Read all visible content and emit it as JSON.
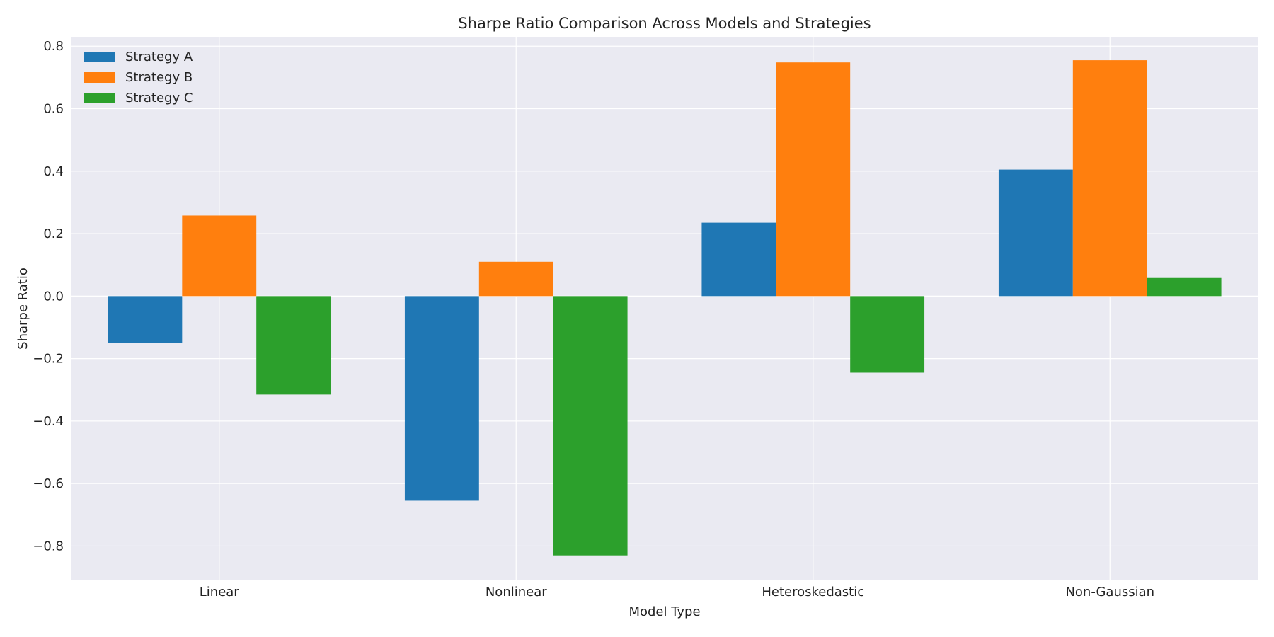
{
  "chart_data": {
    "type": "bar",
    "title": "Sharpe Ratio Comparison Across Models and Strategies",
    "xlabel": "Model Type",
    "ylabel": "Sharpe Ratio",
    "categories": [
      "Linear",
      "Nonlinear",
      "Heteroskedastic",
      "Non-Gaussian"
    ],
    "series": [
      {
        "name": "Strategy A",
        "color": "#1f77b4",
        "values": [
          -0.15,
          -0.655,
          0.235,
          0.405
        ]
      },
      {
        "name": "Strategy B",
        "color": "#ff7f0e",
        "values": [
          0.258,
          0.11,
          0.748,
          0.755
        ]
      },
      {
        "name": "Strategy C",
        "color": "#2ca02c",
        "values": [
          -0.315,
          -0.83,
          -0.245,
          0.058
        ]
      }
    ],
    "ylim": [
      -0.91,
      0.83
    ],
    "yticks": [
      0.8,
      0.6,
      0.4,
      0.2,
      0.0,
      -0.2,
      -0.4,
      -0.6,
      -0.8
    ],
    "ytick_labels": [
      "0.8",
      "0.6",
      "0.4",
      "0.2",
      "0.0",
      "−0.2",
      "−0.4",
      "−0.6",
      "−0.8"
    ],
    "grid": true,
    "legend_position": "top-left",
    "background_color": "#eaeaf2",
    "grid_color": "#ffffff"
  }
}
